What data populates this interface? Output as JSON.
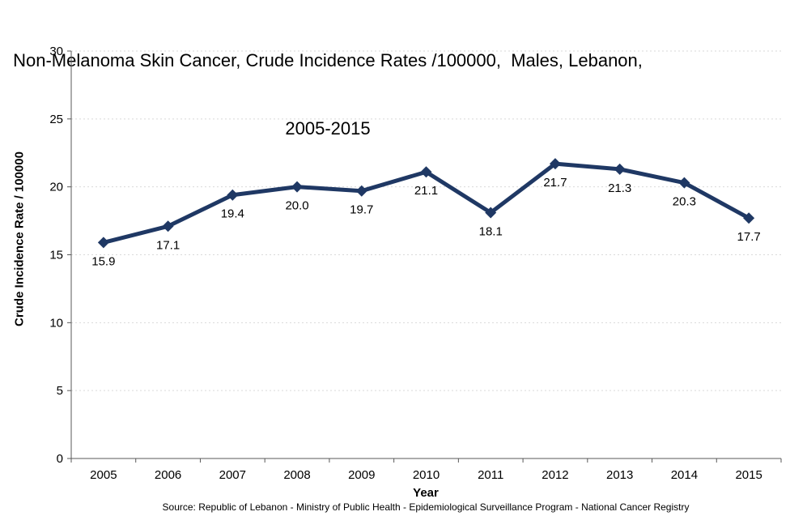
{
  "title": {
    "line1": "Non-Melanoma Skin Cancer, Crude Incidence Rates /100000,  Males, Lebanon,",
    "line2": "2005-2015"
  },
  "source_note": "Source: Republic of Lebanon  - Ministry of Public Health - Epidemiological Surveillance Program - National Cancer Registry",
  "colors": {
    "series_line": "#1F3864",
    "marker": "#1F3864",
    "gridline": "#D9D9D9",
    "axis_line": "#595959",
    "text": "#000000",
    "background": "#FFFFFF"
  },
  "chart_data": {
    "type": "line",
    "title": "Non-Melanoma Skin Cancer, Crude Incidence Rates /100000, Males, Lebanon, 2005-2015",
    "xlabel": "Year",
    "ylabel": "Crude Incidence Rate / 100000",
    "categories": [
      "2005",
      "2006",
      "2007",
      "2008",
      "2009",
      "2010",
      "2011",
      "2012",
      "2013",
      "2014",
      "2015"
    ],
    "values": [
      15.9,
      17.1,
      19.4,
      20.0,
      19.7,
      21.1,
      18.1,
      21.7,
      21.3,
      20.3,
      17.7
    ],
    "data_labels": [
      "15.9",
      "17.1",
      "19.4",
      "20.0",
      "19.7",
      "21.1",
      "18.1",
      "21.7",
      "21.3",
      "20.3",
      "17.7"
    ],
    "ylim": [
      0,
      30
    ],
    "ytick_step": 5,
    "ytick_labels": [
      "0",
      "5",
      "10",
      "15",
      "20",
      "25",
      "30"
    ],
    "grid": "horizontal-dashed",
    "legend": "none",
    "marker_shape": "diamond"
  }
}
